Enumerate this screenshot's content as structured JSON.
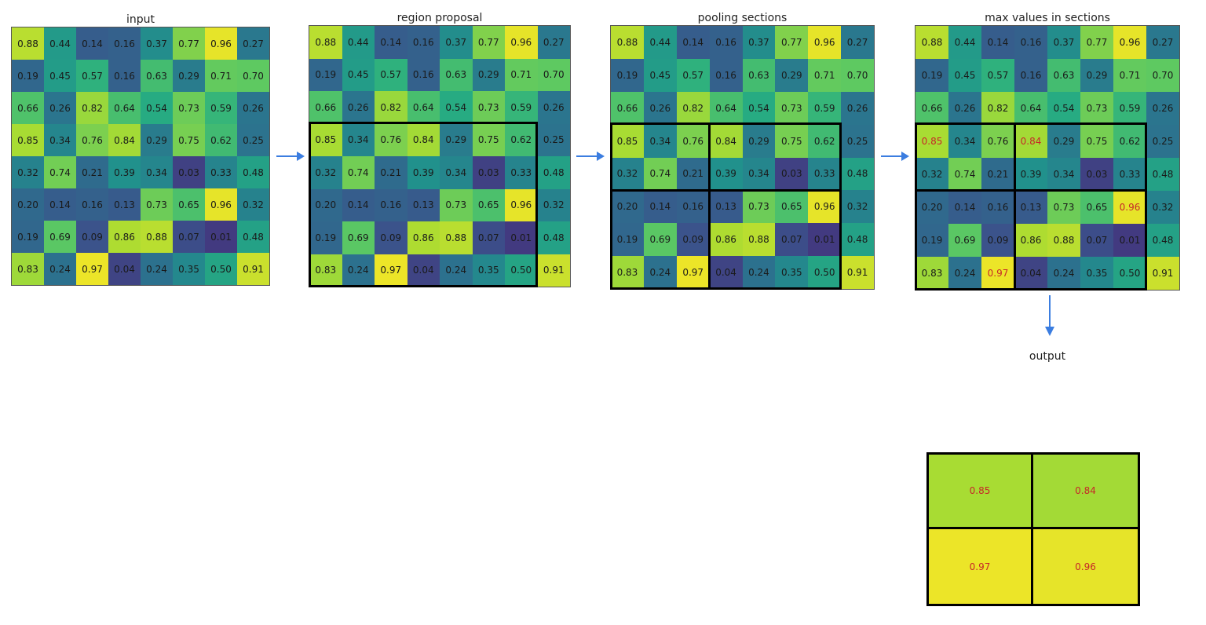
{
  "titles": {
    "input": "input",
    "region": "region proposal",
    "pooling": "pooling sections",
    "max": "max values in sections",
    "output": "output"
  },
  "matrix": [
    [
      "0.88",
      "0.44",
      "0.14",
      "0.16",
      "0.37",
      "0.77",
      "0.96",
      "0.27"
    ],
    [
      "0.19",
      "0.45",
      "0.57",
      "0.16",
      "0.63",
      "0.29",
      "0.71",
      "0.70"
    ],
    [
      "0.66",
      "0.26",
      "0.82",
      "0.64",
      "0.54",
      "0.73",
      "0.59",
      "0.26"
    ],
    [
      "0.85",
      "0.34",
      "0.76",
      "0.84",
      "0.29",
      "0.75",
      "0.62",
      "0.25"
    ],
    [
      "0.32",
      "0.74",
      "0.21",
      "0.39",
      "0.34",
      "0.03",
      "0.33",
      "0.48"
    ],
    [
      "0.20",
      "0.14",
      "0.16",
      "0.13",
      "0.73",
      "0.65",
      "0.96",
      "0.32"
    ],
    [
      "0.19",
      "0.69",
      "0.09",
      "0.86",
      "0.88",
      "0.07",
      "0.01",
      "0.48"
    ],
    [
      "0.83",
      "0.24",
      "0.97",
      "0.04",
      "0.24",
      "0.35",
      "0.50",
      "0.91"
    ]
  ],
  "colormap": "viridis",
  "max_highlights": [
    [
      3,
      0
    ],
    [
      3,
      3
    ],
    [
      5,
      6
    ],
    [
      7,
      2
    ]
  ],
  "output": [
    [
      "0.85",
      "0.84"
    ],
    [
      "0.97",
      "0.96"
    ]
  ],
  "colors": {
    "arrow": "#3b7de0",
    "highlight_text": "#c62828",
    "border": "#000000"
  }
}
